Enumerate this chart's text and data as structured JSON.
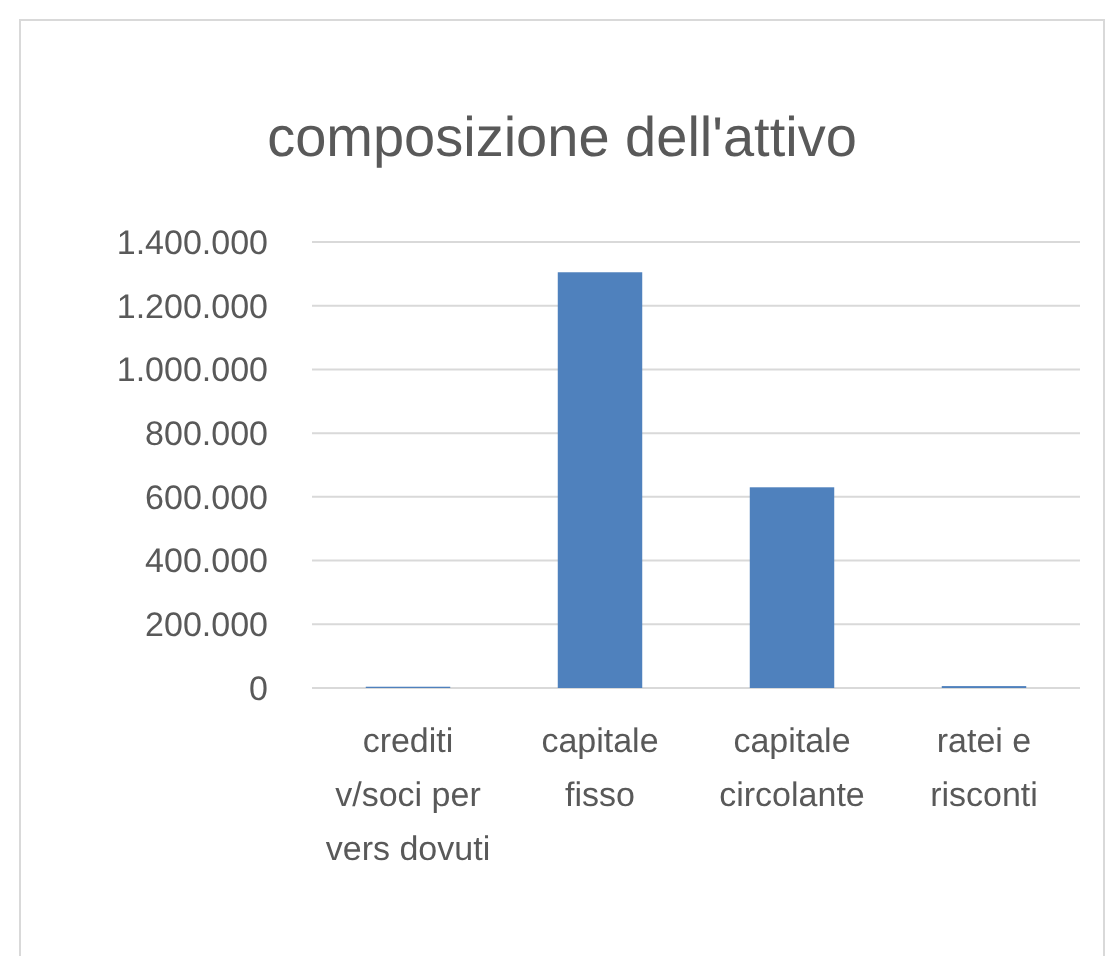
{
  "chart_data": {
    "type": "bar",
    "title": "composizione dell'attivo",
    "categories": [
      "crediti v/soci per vers dovuti",
      "capitale fisso",
      "capitale circolante",
      "ratei e risconti"
    ],
    "values": [
      4000,
      1305000,
      630000,
      6000
    ],
    "color": "#4f81bd",
    "ylim": [
      0,
      1400000
    ],
    "yticks": [
      {
        "value": 0,
        "label": "0"
      },
      {
        "value": 200000,
        "label": "200.000"
      },
      {
        "value": 400000,
        "label": "400.000"
      },
      {
        "value": 600000,
        "label": "600.000"
      },
      {
        "value": 800000,
        "label": "800.000"
      },
      {
        "value": 1000000,
        "label": "1.000.000"
      },
      {
        "value": 1200000,
        "label": "1.200.000"
      },
      {
        "value": 1400000,
        "label": "1.400.000"
      }
    ],
    "grid": "y"
  }
}
